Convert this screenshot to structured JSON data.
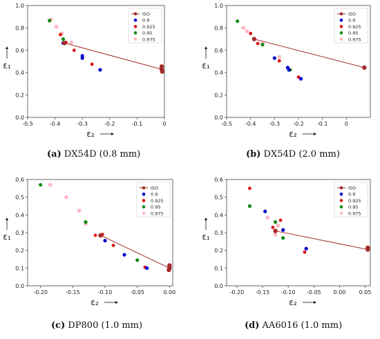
{
  "colors": {
    "ISO": "#a52a2a",
    "0.9": "#0000cc",
    "0.925": "#dd1111",
    "0.95": "#118811",
    "0.975": "#ffb6c1"
  },
  "panels": [
    {
      "id": "a",
      "caption_letter": "(a)",
      "caption_text": "DX54D (0.8 mm)",
      "chart_data": {
        "type": "scatter",
        "xlabel": "ε₂",
        "ylabel": "ε₁",
        "xlim": [
          -0.5,
          0.0
        ],
        "ylim": [
          0.0,
          1.0
        ],
        "xticks": [
          "-0.5",
          "-0.4",
          "-0.3",
          "-0.2",
          "-0.1",
          "0"
        ],
        "yticks": [
          "0.0",
          "0.2",
          "0.4",
          "0.6",
          "0.8",
          "1.0"
        ],
        "legend": [
          "ISO",
          "0.9",
          "0.925",
          "0.95",
          "0.975"
        ],
        "legend_position": "top-right",
        "iso_line": [
          [
            -0.366,
            0.665
          ],
          [
            -0.01,
            0.43
          ]
        ],
        "series": [
          {
            "name": "ISO",
            "points": [
              [
                -0.366,
                0.665
              ],
              [
                -0.01,
                0.43
              ],
              [
                -0.01,
                0.455
              ],
              [
                -0.008,
                0.41
              ]
            ]
          },
          {
            "name": "0.9",
            "points": [
              [
                -0.37,
                0.665
              ],
              [
                -0.3,
                0.55
              ],
              [
                -0.3,
                0.53
              ],
              [
                -0.235,
                0.425
              ]
            ]
          },
          {
            "name": "0.925",
            "points": [
              [
                -0.38,
                0.74
              ],
              [
                -0.36,
                0.67
              ],
              [
                -0.33,
                0.6
              ],
              [
                -0.265,
                0.475
              ]
            ]
          },
          {
            "name": "0.95",
            "points": [
              [
                -0.42,
                0.865
              ],
              [
                -0.37,
                0.7
              ],
              [
                -0.365,
                0.66
              ]
            ]
          },
          {
            "name": "0.975",
            "points": [
              [
                -0.415,
                0.875
              ],
              [
                -0.395,
                0.81
              ],
              [
                -0.375,
                0.75
              ],
              [
                -0.34,
                0.67
              ]
            ]
          }
        ]
      }
    },
    {
      "id": "b",
      "caption_letter": "(b)",
      "caption_text": "DX54D (2.0 mm)",
      "chart_data": {
        "type": "scatter",
        "xlabel": "ε₂",
        "ylabel": "ε₁",
        "xlim": [
          -0.5,
          0.1
        ],
        "ylim": [
          0.0,
          1.0
        ],
        "xticks": [
          "-0.5",
          "-0.4",
          "-0.3",
          "-0.2",
          "-0.1",
          "0"
        ],
        "yticks": [
          "0.0",
          "0.2",
          "0.4",
          "0.6",
          "0.8",
          "1.0"
        ],
        "legend": [
          "ISO",
          "0.9",
          "0.925",
          "0.95",
          "0.975"
        ],
        "legend_position": "top-right",
        "iso_line": [
          [
            -0.385,
            0.7
          ],
          [
            0.075,
            0.445
          ]
        ],
        "series": [
          {
            "name": "ISO",
            "points": [
              [
                -0.385,
                0.7
              ],
              [
                0.075,
                0.445
              ]
            ]
          },
          {
            "name": "0.9",
            "points": [
              [
                -0.3,
                0.53
              ],
              [
                -0.245,
                0.445
              ],
              [
                -0.24,
                0.425
              ],
              [
                -0.19,
                0.345
              ]
            ]
          },
          {
            "name": "0.925",
            "points": [
              [
                -0.4,
                0.75
              ],
              [
                -0.37,
                0.66
              ],
              [
                -0.28,
                0.505
              ],
              [
                -0.2,
                0.36
              ]
            ]
          },
          {
            "name": "0.95",
            "points": [
              [
                -0.455,
                0.86
              ],
              [
                -0.35,
                0.65
              ],
              [
                -0.235,
                0.425
              ]
            ]
          },
          {
            "name": "0.975",
            "points": [
              [
                -0.43,
                0.8
              ],
              [
                -0.415,
                0.77
              ],
              [
                -0.35,
                0.66
              ],
              [
                -0.28,
                0.54
              ]
            ]
          }
        ]
      }
    },
    {
      "id": "c",
      "caption_letter": "(c)",
      "caption_text": "DP800 (1.0 mm)",
      "chart_data": {
        "type": "scatter",
        "xlabel": "ε₂",
        "ylabel": "ε₁",
        "xlim": [
          -0.22,
          0.005
        ],
        "ylim": [
          0.0,
          0.6
        ],
        "xticks": [
          "-0.20",
          "-0.15",
          "-0.10",
          "-0.05",
          "0.00"
        ],
        "yticks": [
          "0.0",
          "0.1",
          "0.2",
          "0.3",
          "0.4",
          "0.5",
          "0.6"
        ],
        "legend": [
          "ISO",
          "0.9",
          "0.925",
          "0.95",
          "0.975"
        ],
        "legend_position": "top-right",
        "iso_line": [
          [
            -0.107,
            0.285
          ],
          [
            0.0,
            0.1
          ]
        ],
        "series": [
          {
            "name": "ISO",
            "points": [
              [
                -0.107,
                0.285
              ],
              [
                0.0,
                0.1
              ],
              [
                0.0,
                0.115
              ],
              [
                -0.001,
                0.09
              ]
            ]
          },
          {
            "name": "0.9",
            "points": [
              [
                -0.1,
                0.255
              ],
              [
                -0.07,
                0.175
              ],
              [
                -0.035,
                0.1
              ]
            ]
          },
          {
            "name": "0.925",
            "points": [
              [
                -0.115,
                0.285
              ],
              [
                -0.104,
                0.29
              ],
              [
                -0.087,
                0.228
              ],
              [
                -0.038,
                0.105
              ]
            ]
          },
          {
            "name": "0.95",
            "points": [
              [
                -0.2,
                0.57
              ],
              [
                -0.13,
                0.36
              ],
              [
                -0.05,
                0.145
              ]
            ]
          },
          {
            "name": "0.975",
            "points": [
              [
                -0.185,
                0.57
              ],
              [
                -0.16,
                0.5
              ],
              [
                -0.14,
                0.425
              ],
              [
                -0.13,
                0.35
              ]
            ]
          }
        ]
      }
    },
    {
      "id": "d",
      "caption_letter": "(d)",
      "caption_text": "AA6016 (1.0 mm)",
      "chart_data": {
        "type": "scatter",
        "xlabel": "ε₂",
        "ylabel": "ε₁",
        "xlim": [
          -0.22,
          0.06
        ],
        "ylim": [
          0.0,
          0.6
        ],
        "xticks": [
          "-0.20",
          "-0.15",
          "-0.10",
          "-0.05",
          "0.00",
          "0.05"
        ],
        "yticks": [
          "0.0",
          "0.1",
          "0.2",
          "0.3",
          "0.4",
          "0.5",
          "0.6"
        ],
        "legend": [
          "ISO",
          "0.9",
          "0.925",
          "0.95",
          "0.975"
        ],
        "legend_position": "top-right",
        "iso_line": [
          [
            -0.125,
            0.31
          ],
          [
            0.055,
            0.205
          ]
        ],
        "series": [
          {
            "name": "ISO",
            "points": [
              [
                -0.125,
                0.31
              ],
              [
                0.055,
                0.205
              ],
              [
                0.055,
                0.215
              ]
            ]
          },
          {
            "name": "0.9",
            "points": [
              [
                -0.145,
                0.42
              ],
              [
                -0.11,
                0.315
              ],
              [
                -0.065,
                0.21
              ]
            ]
          },
          {
            "name": "0.925",
            "points": [
              [
                -0.175,
                0.55
              ],
              [
                -0.115,
                0.37
              ],
              [
                -0.13,
                0.33
              ],
              [
                -0.068,
                0.19
              ]
            ]
          },
          {
            "name": "0.95",
            "points": [
              [
                -0.175,
                0.45
              ],
              [
                -0.125,
                0.36
              ],
              [
                -0.11,
                0.27
              ]
            ]
          },
          {
            "name": "0.975",
            "points": [
              [
                -0.14,
                0.385
              ],
              [
                -0.12,
                0.34
              ],
              [
                -0.125,
                0.29
              ]
            ]
          }
        ]
      }
    }
  ]
}
